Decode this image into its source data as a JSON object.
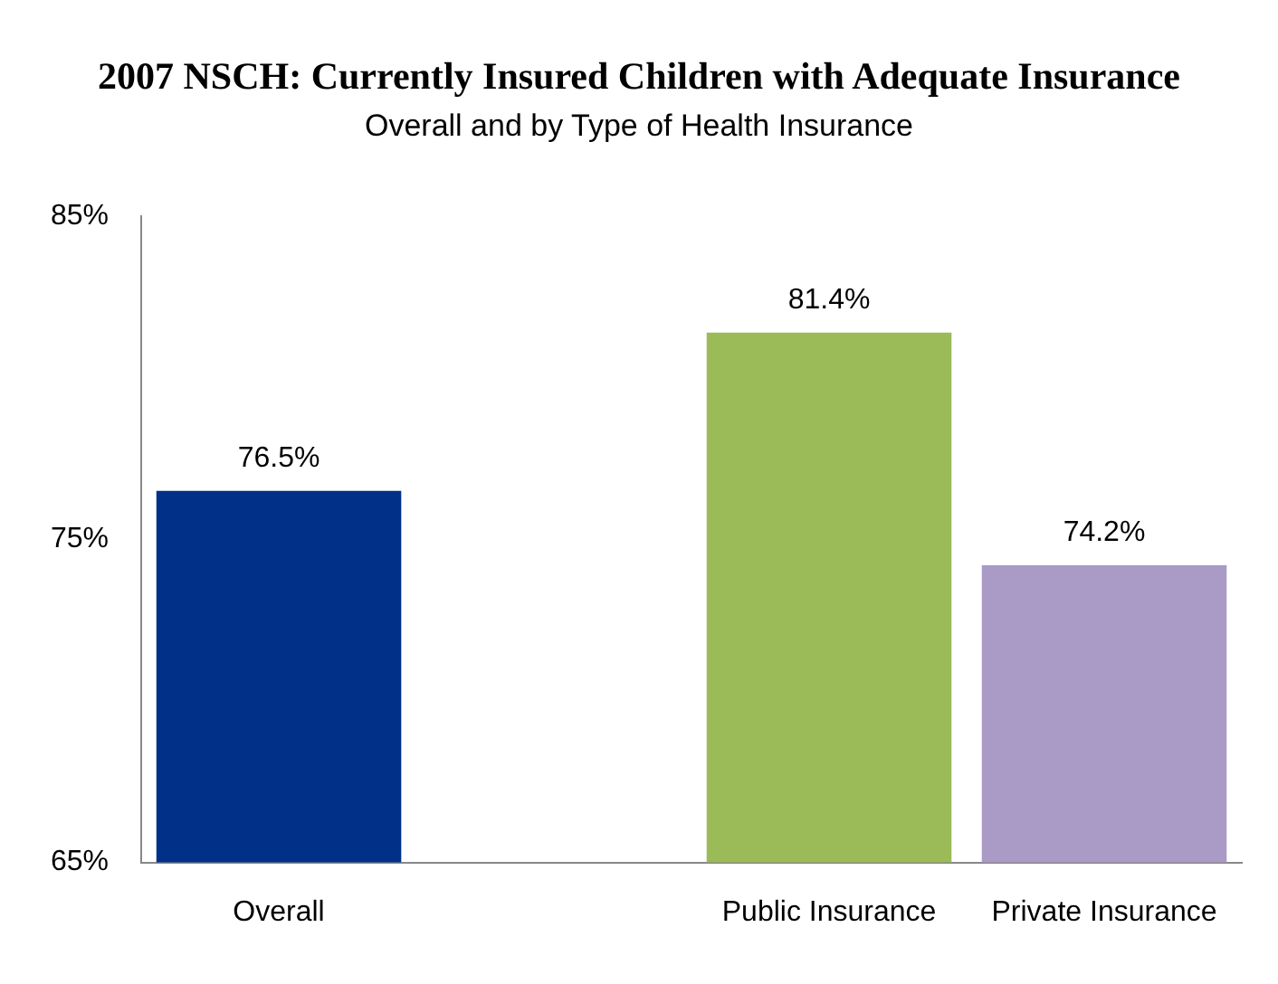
{
  "chart_data": {
    "type": "bar",
    "title": "2007 NSCH: Currently Insured Children with Adequate Insurance",
    "subtitle": "Overall and by Type of Health Insurance",
    "categories": [
      "Overall",
      null,
      "Public Insurance",
      "Private Insurance"
    ],
    "values": [
      76.5,
      null,
      81.4,
      74.2
    ],
    "colors": [
      "#003087",
      "#ffffff",
      "#9bbb59",
      "#a99bc6"
    ],
    "value_labels": [
      "76.5%",
      null,
      "81.4%",
      "74.2%"
    ],
    "ylim": [
      65,
      85
    ],
    "yticks": [
      {
        "value": 65,
        "label": "65%"
      },
      {
        "value": 75,
        "label": "75%"
      },
      {
        "value": 85,
        "label": "85%"
      }
    ],
    "grid": false,
    "legend": false
  }
}
